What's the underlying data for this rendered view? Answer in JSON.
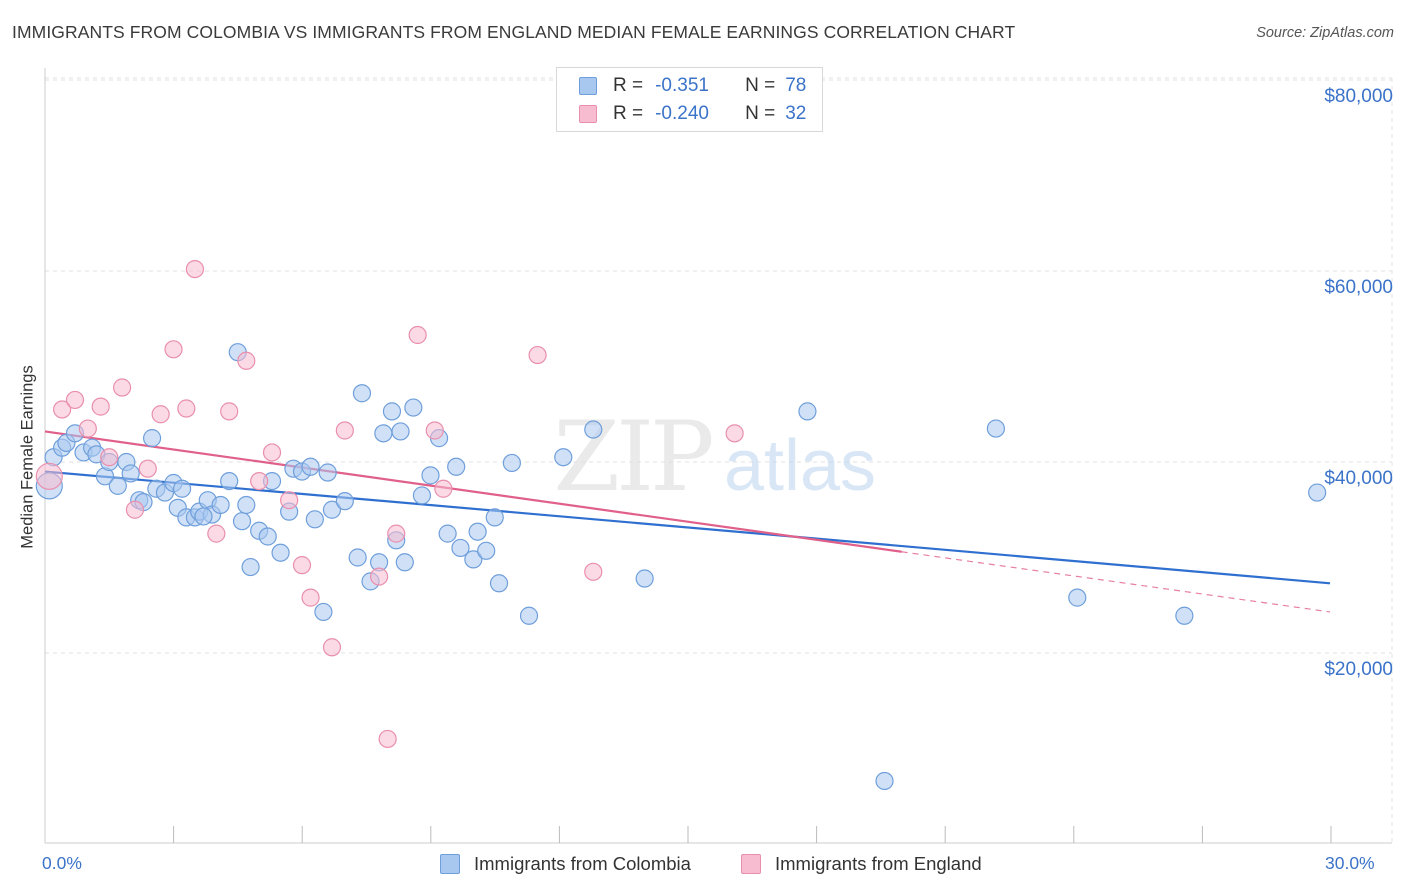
{
  "header": {
    "title": "IMMIGRANTS FROM COLOMBIA VS IMMIGRANTS FROM ENGLAND MEDIAN FEMALE EARNINGS CORRELATION CHART",
    "source": "Source: ZipAtlas.com"
  },
  "watermark": {
    "zip": "ZIP",
    "atlas": "atlas"
  },
  "legend": {
    "rows": [
      {
        "r_label": "R =",
        "r_value": "-0.351",
        "n_label": "N =",
        "n_value": "78"
      },
      {
        "r_label": "R =",
        "r_value": "-0.240",
        "n_label": "N =",
        "n_value": "32"
      }
    ]
  },
  "colors": {
    "colombia_fill": "#a9c8f0",
    "colombia_stroke": "#6f9fdb",
    "colombia_line": "#2f6fcf",
    "england_fill": "#f7bcd0",
    "england_stroke": "#e98fad",
    "england_line": "#e0608a",
    "axis_text": "#3b73c9",
    "grid": "#e2e2e2"
  },
  "chart_data": {
    "type": "scatter",
    "title": "IMMIGRANTS FROM COLOMBIA VS IMMIGRANTS FROM ENGLAND MEDIAN FEMALE EARNINGS CORRELATION CHART",
    "xlabel": "",
    "ylabel": "Median Female Earnings",
    "xlim": [
      0,
      30
    ],
    "ylim": [
      0,
      82000
    ],
    "x_tick_labels": [
      "0.0%",
      "30.0%"
    ],
    "y_ticks": [
      20000,
      40000,
      60000,
      80000
    ],
    "y_tick_labels": [
      "$20,000",
      "$40,000",
      "$60,000",
      "$80,000"
    ],
    "grid": true,
    "series": [
      {
        "name": "Immigrants from Colombia",
        "r": -0.351,
        "n": 78,
        "trend": {
          "x0": 0,
          "y0": 39000,
          "x1": 30,
          "y1": 27300
        },
        "points": [
          {
            "x": 0.1,
            "y": 37500
          },
          {
            "x": 0.2,
            "y": 40500
          },
          {
            "x": 0.4,
            "y": 41500
          },
          {
            "x": 0.5,
            "y": 42000
          },
          {
            "x": 0.7,
            "y": 43000
          },
          {
            "x": 0.9,
            "y": 41000
          },
          {
            "x": 1.1,
            "y": 41500
          },
          {
            "x": 1.2,
            "y": 40800
          },
          {
            "x": 1.4,
            "y": 38500
          },
          {
            "x": 1.5,
            "y": 40000
          },
          {
            "x": 1.7,
            "y": 37500
          },
          {
            "x": 1.9,
            "y": 40000
          },
          {
            "x": 2.0,
            "y": 38800
          },
          {
            "x": 2.2,
            "y": 36000
          },
          {
            "x": 2.3,
            "y": 35800
          },
          {
            "x": 2.5,
            "y": 42500
          },
          {
            "x": 2.6,
            "y": 37200
          },
          {
            "x": 2.8,
            "y": 36800
          },
          {
            "x": 3.0,
            "y": 37800
          },
          {
            "x": 3.1,
            "y": 35200
          },
          {
            "x": 3.2,
            "y": 37200
          },
          {
            "x": 3.3,
            "y": 34200
          },
          {
            "x": 3.5,
            "y": 34200
          },
          {
            "x": 3.6,
            "y": 34800
          },
          {
            "x": 3.8,
            "y": 36000
          },
          {
            "x": 3.9,
            "y": 34500
          },
          {
            "x": 4.1,
            "y": 35500
          },
          {
            "x": 4.3,
            "y": 38000
          },
          {
            "x": 4.5,
            "y": 51500
          },
          {
            "x": 4.6,
            "y": 33800
          },
          {
            "x": 4.7,
            "y": 35500
          },
          {
            "x": 4.8,
            "y": 29000
          },
          {
            "x": 5.0,
            "y": 32800
          },
          {
            "x": 5.2,
            "y": 32200
          },
          {
            "x": 5.3,
            "y": 38000
          },
          {
            "x": 5.5,
            "y": 30500
          },
          {
            "x": 5.7,
            "y": 34800
          },
          {
            "x": 5.8,
            "y": 39300
          },
          {
            "x": 6.0,
            "y": 39000
          },
          {
            "x": 6.2,
            "y": 39500
          },
          {
            "x": 6.3,
            "y": 34000
          },
          {
            "x": 6.5,
            "y": 24300
          },
          {
            "x": 6.6,
            "y": 38900
          },
          {
            "x": 6.7,
            "y": 35000
          },
          {
            "x": 7.0,
            "y": 35900
          },
          {
            "x": 7.3,
            "y": 30000
          },
          {
            "x": 7.4,
            "y": 47200
          },
          {
            "x": 7.6,
            "y": 27500
          },
          {
            "x": 7.8,
            "y": 29500
          },
          {
            "x": 7.9,
            "y": 43000
          },
          {
            "x": 8.1,
            "y": 45300
          },
          {
            "x": 8.2,
            "y": 31800
          },
          {
            "x": 8.3,
            "y": 43200
          },
          {
            "x": 8.4,
            "y": 29500
          },
          {
            "x": 8.6,
            "y": 45700
          },
          {
            "x": 8.8,
            "y": 36500
          },
          {
            "x": 9.0,
            "y": 38600
          },
          {
            "x": 9.2,
            "y": 42500
          },
          {
            "x": 9.4,
            "y": 32500
          },
          {
            "x": 9.6,
            "y": 39500
          },
          {
            "x": 9.7,
            "y": 31000
          },
          {
            "x": 10.0,
            "y": 29800
          },
          {
            "x": 10.1,
            "y": 32700
          },
          {
            "x": 10.3,
            "y": 30700
          },
          {
            "x": 10.5,
            "y": 34200
          },
          {
            "x": 10.6,
            "y": 27300
          },
          {
            "x": 10.9,
            "y": 39900
          },
          {
            "x": 11.3,
            "y": 23900
          },
          {
            "x": 12.1,
            "y": 40500
          },
          {
            "x": 12.8,
            "y": 43400
          },
          {
            "x": 14.0,
            "y": 27800
          },
          {
            "x": 17.8,
            "y": 45300
          },
          {
            "x": 19.6,
            "y": 6600
          },
          {
            "x": 22.2,
            "y": 43500
          },
          {
            "x": 24.1,
            "y": 25800
          },
          {
            "x": 26.6,
            "y": 23900
          },
          {
            "x": 29.7,
            "y": 36800
          },
          {
            "x": 3.7,
            "y": 34300
          }
        ]
      },
      {
        "name": "Immigrants from England",
        "r": -0.24,
        "n": 32,
        "trend": {
          "x0": 0,
          "y0": 43200,
          "x1": 20,
          "y1": 30600,
          "dash_x1": 30,
          "dash_y1": 24300
        },
        "points": [
          {
            "x": 0.1,
            "y": 38500
          },
          {
            "x": 0.4,
            "y": 45500
          },
          {
            "x": 0.7,
            "y": 46500
          },
          {
            "x": 1.0,
            "y": 43500
          },
          {
            "x": 1.3,
            "y": 45800
          },
          {
            "x": 1.5,
            "y": 40500
          },
          {
            "x": 1.8,
            "y": 47800
          },
          {
            "x": 2.1,
            "y": 35000
          },
          {
            "x": 2.4,
            "y": 39300
          },
          {
            "x": 2.7,
            "y": 45000
          },
          {
            "x": 3.0,
            "y": 51800
          },
          {
            "x": 3.3,
            "y": 45600
          },
          {
            "x": 3.5,
            "y": 60200
          },
          {
            "x": 4.0,
            "y": 32500
          },
          {
            "x": 4.3,
            "y": 45300
          },
          {
            "x": 4.7,
            "y": 50600
          },
          {
            "x": 5.0,
            "y": 38000
          },
          {
            "x": 5.3,
            "y": 41000
          },
          {
            "x": 5.7,
            "y": 36000
          },
          {
            "x": 6.0,
            "y": 29200
          },
          {
            "x": 6.2,
            "y": 25800
          },
          {
            "x": 6.7,
            "y": 20600
          },
          {
            "x": 7.0,
            "y": 43300
          },
          {
            "x": 7.8,
            "y": 28000
          },
          {
            "x": 8.0,
            "y": 11000
          },
          {
            "x": 8.2,
            "y": 32500
          },
          {
            "x": 8.7,
            "y": 53300
          },
          {
            "x": 9.1,
            "y": 43300
          },
          {
            "x": 9.3,
            "y": 37200
          },
          {
            "x": 11.5,
            "y": 51200
          },
          {
            "x": 12.8,
            "y": 28500
          },
          {
            "x": 16.1,
            "y": 43000
          }
        ]
      }
    ]
  },
  "bottom_legend": {
    "items": [
      "Immigrants from Colombia",
      "Immigrants from England"
    ]
  }
}
